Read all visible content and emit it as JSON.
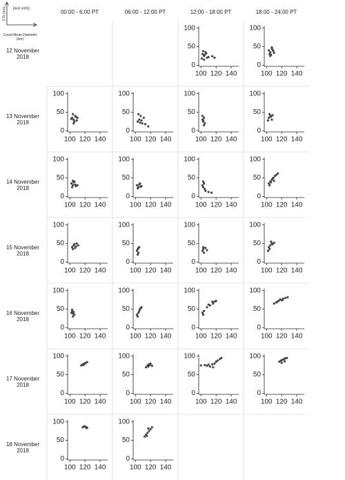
{
  "axis_key": {
    "y_label": "CTe (nm)",
    "units": "[axis units]",
    "x_label": "Count Mean Diameter (nm)"
  },
  "columns": [
    "00:00 - 6:00 PT",
    "06:00 - 12:00 PT",
    "12:00 - 18:00 PT",
    "18:00 - 24:00 PT"
  ],
  "rows": [
    "12 November 2018",
    "13 November 2018",
    "14 November 2018",
    "15 November 2018",
    "16 November 2018",
    "17 November 2018",
    "18 November 2018"
  ],
  "chart_data": [
    null,
    null,
    {
      "type": "scatter",
      "x": [
        102,
        104,
        106,
        108,
        103,
        105,
        110,
        115,
        118,
        107,
        101,
        104
      ],
      "values": [
        30,
        25,
        35,
        20,
        38,
        28,
        22,
        24,
        20,
        32,
        18,
        15
      ],
      "color": "#444",
      "xlim": [
        97,
        150
      ],
      "ylim": [
        -3,
        105
      ],
      "xticks": [
        100,
        120,
        140
      ],
      "yticks": [
        0,
        50,
        100
      ]
    },
    {
      "type": "scatter",
      "x": [
        103,
        105,
        107,
        109,
        104,
        106,
        108,
        110,
        105,
        107
      ],
      "values": [
        40,
        35,
        45,
        38,
        30,
        28,
        42,
        33,
        25,
        48
      ],
      "color": "#444",
      "xlim": [
        97,
        150
      ],
      "ylim": [
        -3,
        105
      ],
      "xticks": [
        100,
        120,
        140
      ],
      "yticks": [
        0,
        50,
        100
      ]
    },
    {
      "type": "scatter",
      "x": [
        103,
        105,
        107,
        109,
        104,
        106,
        108,
        102,
        110,
        105
      ],
      "values": [
        35,
        30,
        40,
        28,
        45,
        25,
        38,
        32,
        35,
        20
      ],
      "color": "#444",
      "xlim": [
        97,
        150
      ],
      "ylim": [
        -3,
        105
      ],
      "xticks": [
        100,
        120,
        140
      ],
      "yticks": [
        0,
        50,
        100
      ]
    },
    {
      "type": "scatter",
      "x": [
        103,
        105,
        107,
        109,
        111,
        104,
        106,
        113,
        117,
        108
      ],
      "values": [
        25,
        30,
        40,
        20,
        35,
        45,
        22,
        18,
        12,
        28
      ],
      "color": "#444",
      "xlim": [
        97,
        150
      ],
      "ylim": [
        -3,
        105
      ],
      "xticks": [
        100,
        120,
        140
      ],
      "yticks": [
        0,
        50,
        100
      ]
    },
    {
      "type": "scatter",
      "x": [
        102,
        103,
        104,
        105,
        102,
        104,
        103
      ],
      "values": [
        30,
        25,
        35,
        20,
        40,
        15,
        28
      ],
      "color": "#444",
      "xlim": [
        97,
        150
      ],
      "ylim": [
        -3,
        105
      ],
      "xticks": [
        100,
        120,
        140
      ],
      "yticks": [
        0,
        50,
        100
      ]
    },
    {
      "type": "scatter",
      "x": [
        103,
        105,
        107,
        104,
        106,
        102,
        108
      ],
      "values": [
        35,
        40,
        30,
        45,
        38,
        28,
        42
      ],
      "color": "#444",
      "xlim": [
        97,
        150
      ],
      "ylim": [
        -3,
        105
      ],
      "xticks": [
        100,
        120,
        140
      ],
      "yticks": [
        0,
        50,
        100
      ]
    },
    {
      "type": "scatter",
      "x": [
        102,
        104,
        106,
        108,
        103,
        105,
        107,
        110,
        104
      ],
      "values": [
        35,
        30,
        40,
        28,
        25,
        38,
        32,
        30,
        42
      ],
      "color": "#444",
      "xlim": [
        97,
        150
      ],
      "ylim": [
        -3,
        105
      ],
      "xticks": [
        100,
        120,
        140
      ],
      "yticks": [
        0,
        50,
        100
      ]
    },
    {
      "type": "scatter",
      "x": [
        102,
        104,
        106,
        108,
        103,
        105,
        107
      ],
      "values": [
        30,
        25,
        35,
        28,
        22,
        32,
        26
      ],
      "color": "#444",
      "xlim": [
        97,
        150
      ],
      "ylim": [
        -3,
        105
      ],
      "xticks": [
        100,
        120,
        140
      ],
      "yticks": [
        0,
        50,
        100
      ]
    },
    {
      "type": "scatter",
      "x": [
        102,
        103,
        104,
        105,
        106,
        110,
        114,
        103
      ],
      "values": [
        30,
        25,
        35,
        20,
        15,
        12,
        10,
        40
      ],
      "color": "#444",
      "xlim": [
        97,
        150
      ],
      "ylim": [
        -3,
        105
      ],
      "xticks": [
        100,
        120,
        140
      ],
      "yticks": [
        0,
        50,
        100
      ]
    },
    {
      "type": "scatter",
      "x": [
        103,
        105,
        107,
        109,
        111,
        113,
        115,
        106,
        108,
        110,
        104
      ],
      "values": [
        35,
        40,
        45,
        50,
        55,
        58,
        62,
        38,
        48,
        42,
        30
      ],
      "color": "#444",
      "xlim": [
        97,
        150
      ],
      "ylim": [
        -3,
        105
      ],
      "xticks": [
        100,
        120,
        140
      ],
      "yticks": [
        0,
        50,
        100
      ]
    },
    {
      "type": "scatter",
      "x": [
        103,
        105,
        107,
        109,
        104,
        106,
        108,
        111
      ],
      "values": [
        40,
        45,
        38,
        50,
        35,
        48,
        42,
        45
      ],
      "color": "#444",
      "xlim": [
        97,
        150
      ],
      "ylim": [
        -3,
        105
      ],
      "xticks": [
        100,
        120,
        140
      ],
      "yticks": [
        0,
        50,
        100
      ]
    },
    {
      "type": "scatter",
      "x": [
        102,
        103,
        104,
        105,
        103,
        104
      ],
      "values": [
        30,
        35,
        25,
        40,
        20,
        38
      ],
      "color": "#444",
      "xlim": [
        97,
        150
      ],
      "ylim": [
        -3,
        105
      ],
      "xticks": [
        100,
        120,
        140
      ],
      "yticks": [
        0,
        50,
        100
      ]
    },
    {
      "type": "scatter",
      "x": [
        102,
        103,
        104,
        106,
        108,
        103
      ],
      "values": [
        30,
        35,
        25,
        38,
        32,
        40
      ],
      "color": "#444",
      "xlim": [
        97,
        150
      ],
      "ylim": [
        -3,
        105
      ],
      "xticks": [
        100,
        120,
        140
      ],
      "yticks": [
        0,
        50,
        100
      ]
    },
    {
      "type": "scatter",
      "x": [
        103,
        105,
        107,
        104,
        106,
        108,
        110,
        102
      ],
      "values": [
        40,
        45,
        50,
        35,
        55,
        48,
        52,
        30
      ],
      "color": "#444",
      "xlim": [
        97,
        150
      ],
      "ylim": [
        -3,
        105
      ],
      "xticks": [
        100,
        120,
        140
      ],
      "yticks": [
        0,
        50,
        100
      ]
    },
    {
      "type": "scatter",
      "x": [
        102,
        103,
        104,
        105,
        106,
        103,
        104
      ],
      "values": [
        40,
        45,
        38,
        42,
        35,
        48,
        30
      ],
      "color": "#444",
      "xlim": [
        97,
        150
      ],
      "ylim": [
        -3,
        105
      ],
      "xticks": [
        100,
        120,
        140
      ],
      "yticks": [
        0,
        50,
        100
      ]
    },
    {
      "type": "scatter",
      "x": [
        102,
        104,
        106,
        108,
        103,
        105,
        107
      ],
      "values": [
        35,
        40,
        50,
        55,
        30,
        45,
        52
      ],
      "color": "#444",
      "xlim": [
        97,
        150
      ],
      "ylim": [
        -3,
        105
      ],
      "xticks": [
        100,
        120,
        140
      ],
      "yticks": [
        0,
        50,
        100
      ]
    },
    {
      "type": "scatter",
      "x": [
        102,
        103,
        104,
        108,
        112,
        116,
        118,
        120,
        115,
        110
      ],
      "values": [
        40,
        35,
        45,
        55,
        60,
        65,
        70,
        72,
        70,
        62
      ],
      "color": "#444",
      "xlim": [
        97,
        150
      ],
      "ylim": [
        -3,
        105
      ],
      "xticks": [
        100,
        120,
        140
      ],
      "yticks": [
        0,
        50,
        100
      ]
    },
    {
      "type": "scatter",
      "x": [
        110,
        113,
        116,
        119,
        122,
        125,
        128,
        114,
        118,
        121
      ],
      "values": [
        65,
        68,
        72,
        75,
        78,
        80,
        82,
        70,
        76,
        74
      ],
      "color": "#444",
      "xlim": [
        97,
        150
      ],
      "ylim": [
        -3,
        105
      ],
      "xticks": [
        100,
        120,
        140
      ],
      "yticks": [
        0,
        50,
        100
      ]
    },
    {
      "type": "scatter",
      "x": [
        115,
        117,
        119,
        121,
        123,
        118,
        120
      ],
      "values": [
        75,
        78,
        80,
        82,
        84,
        76,
        80
      ],
      "color": "#444",
      "xlim": [
        97,
        150
      ],
      "ylim": [
        -3,
        105
      ],
      "xticks": [
        100,
        120,
        140
      ],
      "yticks": [
        0,
        50,
        100
      ]
    },
    {
      "type": "scatter",
      "x": [
        114,
        116,
        118,
        120,
        122,
        117,
        119
      ],
      "values": [
        70,
        75,
        78,
        80,
        74,
        72,
        76
      ],
      "color": "#444",
      "xlim": [
        97,
        150
      ],
      "ylim": [
        -3,
        105
      ],
      "xticks": [
        100,
        120,
        140
      ],
      "yticks": [
        0,
        50,
        100
      ]
    },
    {
      "type": "scatter",
      "x": [
        100,
        105,
        110,
        115,
        118,
        120,
        122,
        125,
        127,
        116,
        112,
        108
      ],
      "values": [
        75,
        76,
        77,
        78,
        80,
        85,
        88,
        92,
        95,
        70,
        72,
        74
      ],
      "color": "#444",
      "xlim": [
        97,
        150
      ],
      "ylim": [
        -3,
        105
      ],
      "xticks": [
        100,
        120,
        140
      ],
      "yticks": [
        0,
        50,
        100
      ]
    },
    {
      "type": "scatter",
      "x": [
        117,
        119,
        121,
        123,
        125,
        127,
        120,
        124
      ],
      "values": [
        85,
        88,
        90,
        92,
        94,
        95,
        82,
        86
      ],
      "color": "#444",
      "xlim": [
        97,
        150
      ],
      "ylim": [
        -3,
        105
      ],
      "xticks": [
        100,
        120,
        140
      ],
      "yticks": [
        0,
        50,
        100
      ]
    },
    {
      "type": "scatter",
      "x": [
        117,
        119,
        121,
        123,
        120,
        122
      ],
      "values": [
        85,
        88,
        86,
        84,
        87,
        83
      ],
      "color": "#444",
      "xlim": [
        97,
        150
      ],
      "ylim": [
        -3,
        105
      ],
      "xticks": [
        100,
        120,
        140
      ],
      "yticks": [
        0,
        50,
        100
      ]
    },
    {
      "type": "scatter",
      "x": [
        112,
        114,
        116,
        118,
        120,
        122,
        115,
        117
      ],
      "values": [
        60,
        65,
        70,
        75,
        80,
        85,
        62,
        82
      ],
      "color": "#444",
      "xlim": [
        97,
        150
      ],
      "ylim": [
        -3,
        105
      ],
      "xticks": [
        100,
        120,
        140
      ],
      "yticks": [
        0,
        50,
        100
      ]
    },
    null,
    null
  ]
}
